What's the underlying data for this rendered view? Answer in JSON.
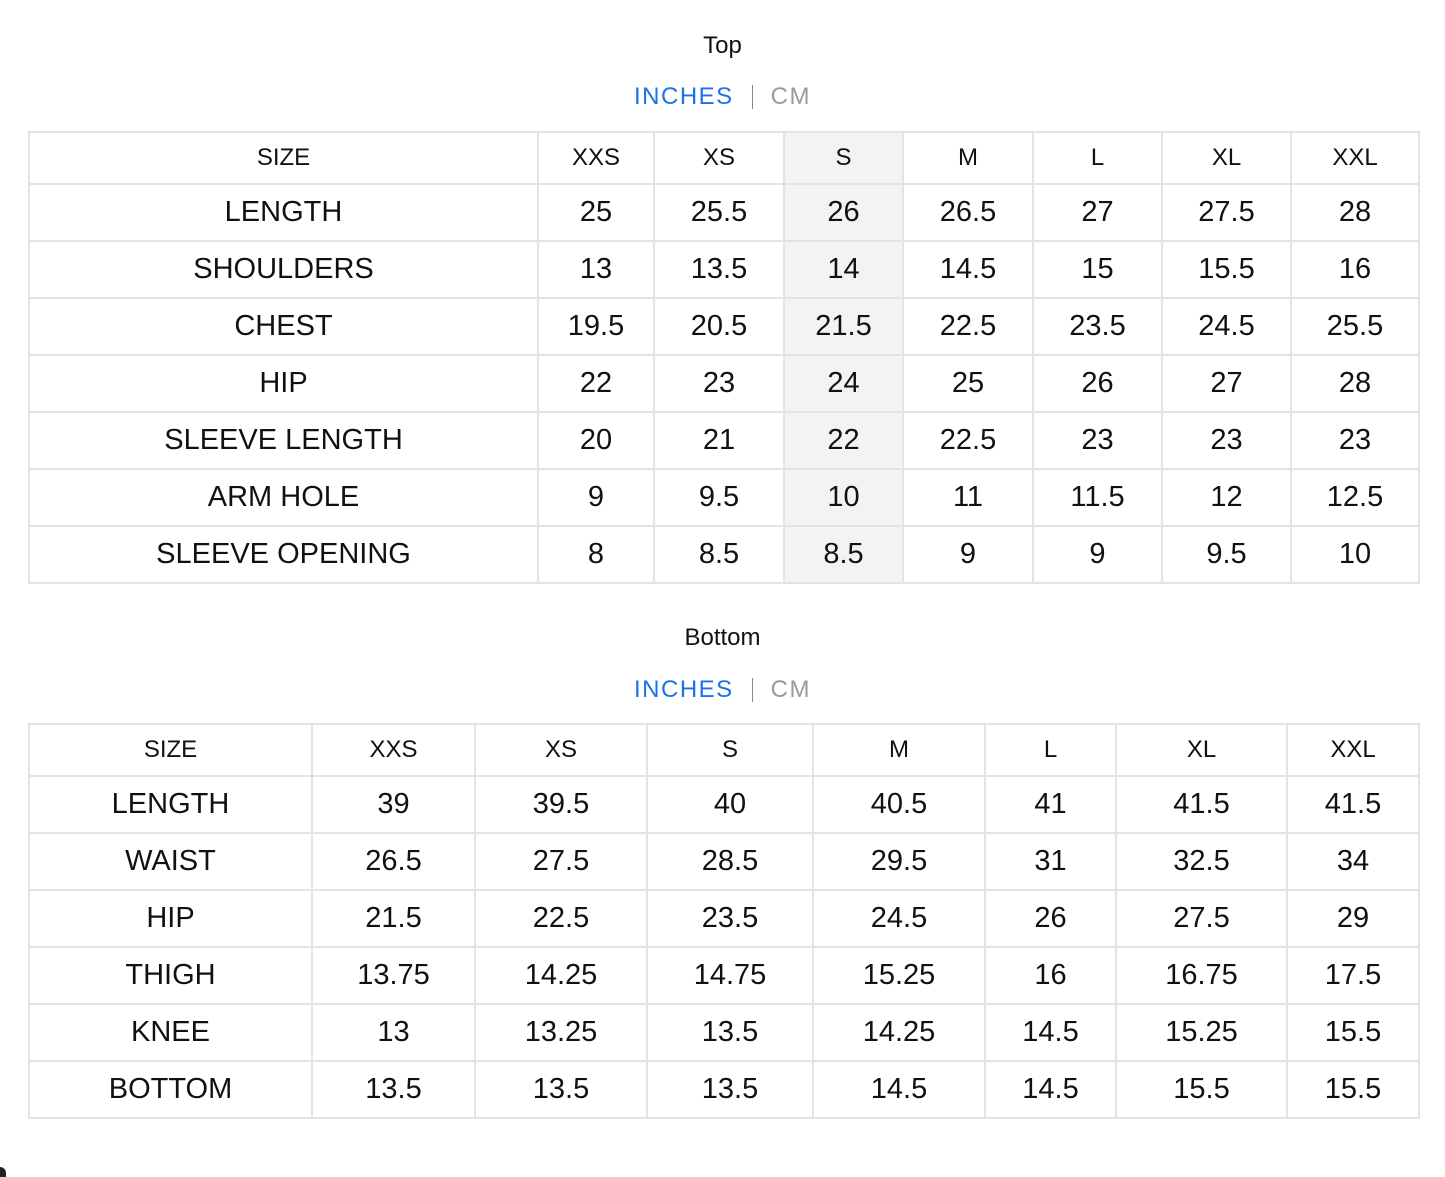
{
  "top": {
    "title": "Top",
    "units": {
      "active": "INCHES",
      "inactive": "CM"
    },
    "header": [
      "SIZE",
      "XXS",
      "XS",
      "S",
      "M",
      "L",
      "XL",
      "XXL"
    ],
    "rows": [
      [
        "LENGTH",
        "25",
        "25.5",
        "26",
        "26.5",
        "27",
        "27.5",
        "28"
      ],
      [
        "SHOULDERS",
        "13",
        "13.5",
        "14",
        "14.5",
        "15",
        "15.5",
        "16"
      ],
      [
        "CHEST",
        "19.5",
        "20.5",
        "21.5",
        "22.5",
        "23.5",
        "24.5",
        "25.5"
      ],
      [
        "HIP",
        "22",
        "23",
        "24",
        "25",
        "26",
        "27",
        "28"
      ],
      [
        "SLEEVE LENGTH",
        "20",
        "21",
        "22",
        "22.5",
        "23",
        "23",
        "23"
      ],
      [
        "ARM HOLE",
        "9",
        "9.5",
        "10",
        "11",
        "11.5",
        "12",
        "12.5"
      ],
      [
        "SLEEVE OPENING",
        "8",
        "8.5",
        "8.5",
        "9",
        "9",
        "9.5",
        "10"
      ]
    ]
  },
  "bottom": {
    "title": "Bottom",
    "units": {
      "active": "INCHES",
      "inactive": "CM"
    },
    "header": [
      "SIZE",
      "XXS",
      "XS",
      "S",
      "M",
      "L",
      "XL",
      "XXL"
    ],
    "rows": [
      [
        "LENGTH",
        "39",
        "39.5",
        "40",
        "40.5",
        "41",
        "41.5",
        "41.5"
      ],
      [
        "WAIST",
        "26.5",
        "27.5",
        "28.5",
        "29.5",
        "31",
        "32.5",
        "34"
      ],
      [
        "HIP",
        "21.5",
        "22.5",
        "23.5",
        "24.5",
        "26",
        "27.5",
        "29"
      ],
      [
        "THIGH",
        "13.75",
        "14.25",
        "14.75",
        "15.25",
        "16",
        "16.75",
        "17.5"
      ],
      [
        "KNEE",
        "13",
        "13.25",
        "13.5",
        "14.25",
        "14.5",
        "15.25",
        "15.5"
      ],
      [
        "BOTTOM",
        "13.5",
        "13.5",
        "13.5",
        "14.5",
        "14.5",
        "15.5",
        "15.5"
      ]
    ]
  },
  "colors": {
    "active_unit": "#1a73e8",
    "inactive_unit": "#9a9a9a",
    "highlight": "#f3f3f3",
    "border": "#e3e3e3"
  }
}
